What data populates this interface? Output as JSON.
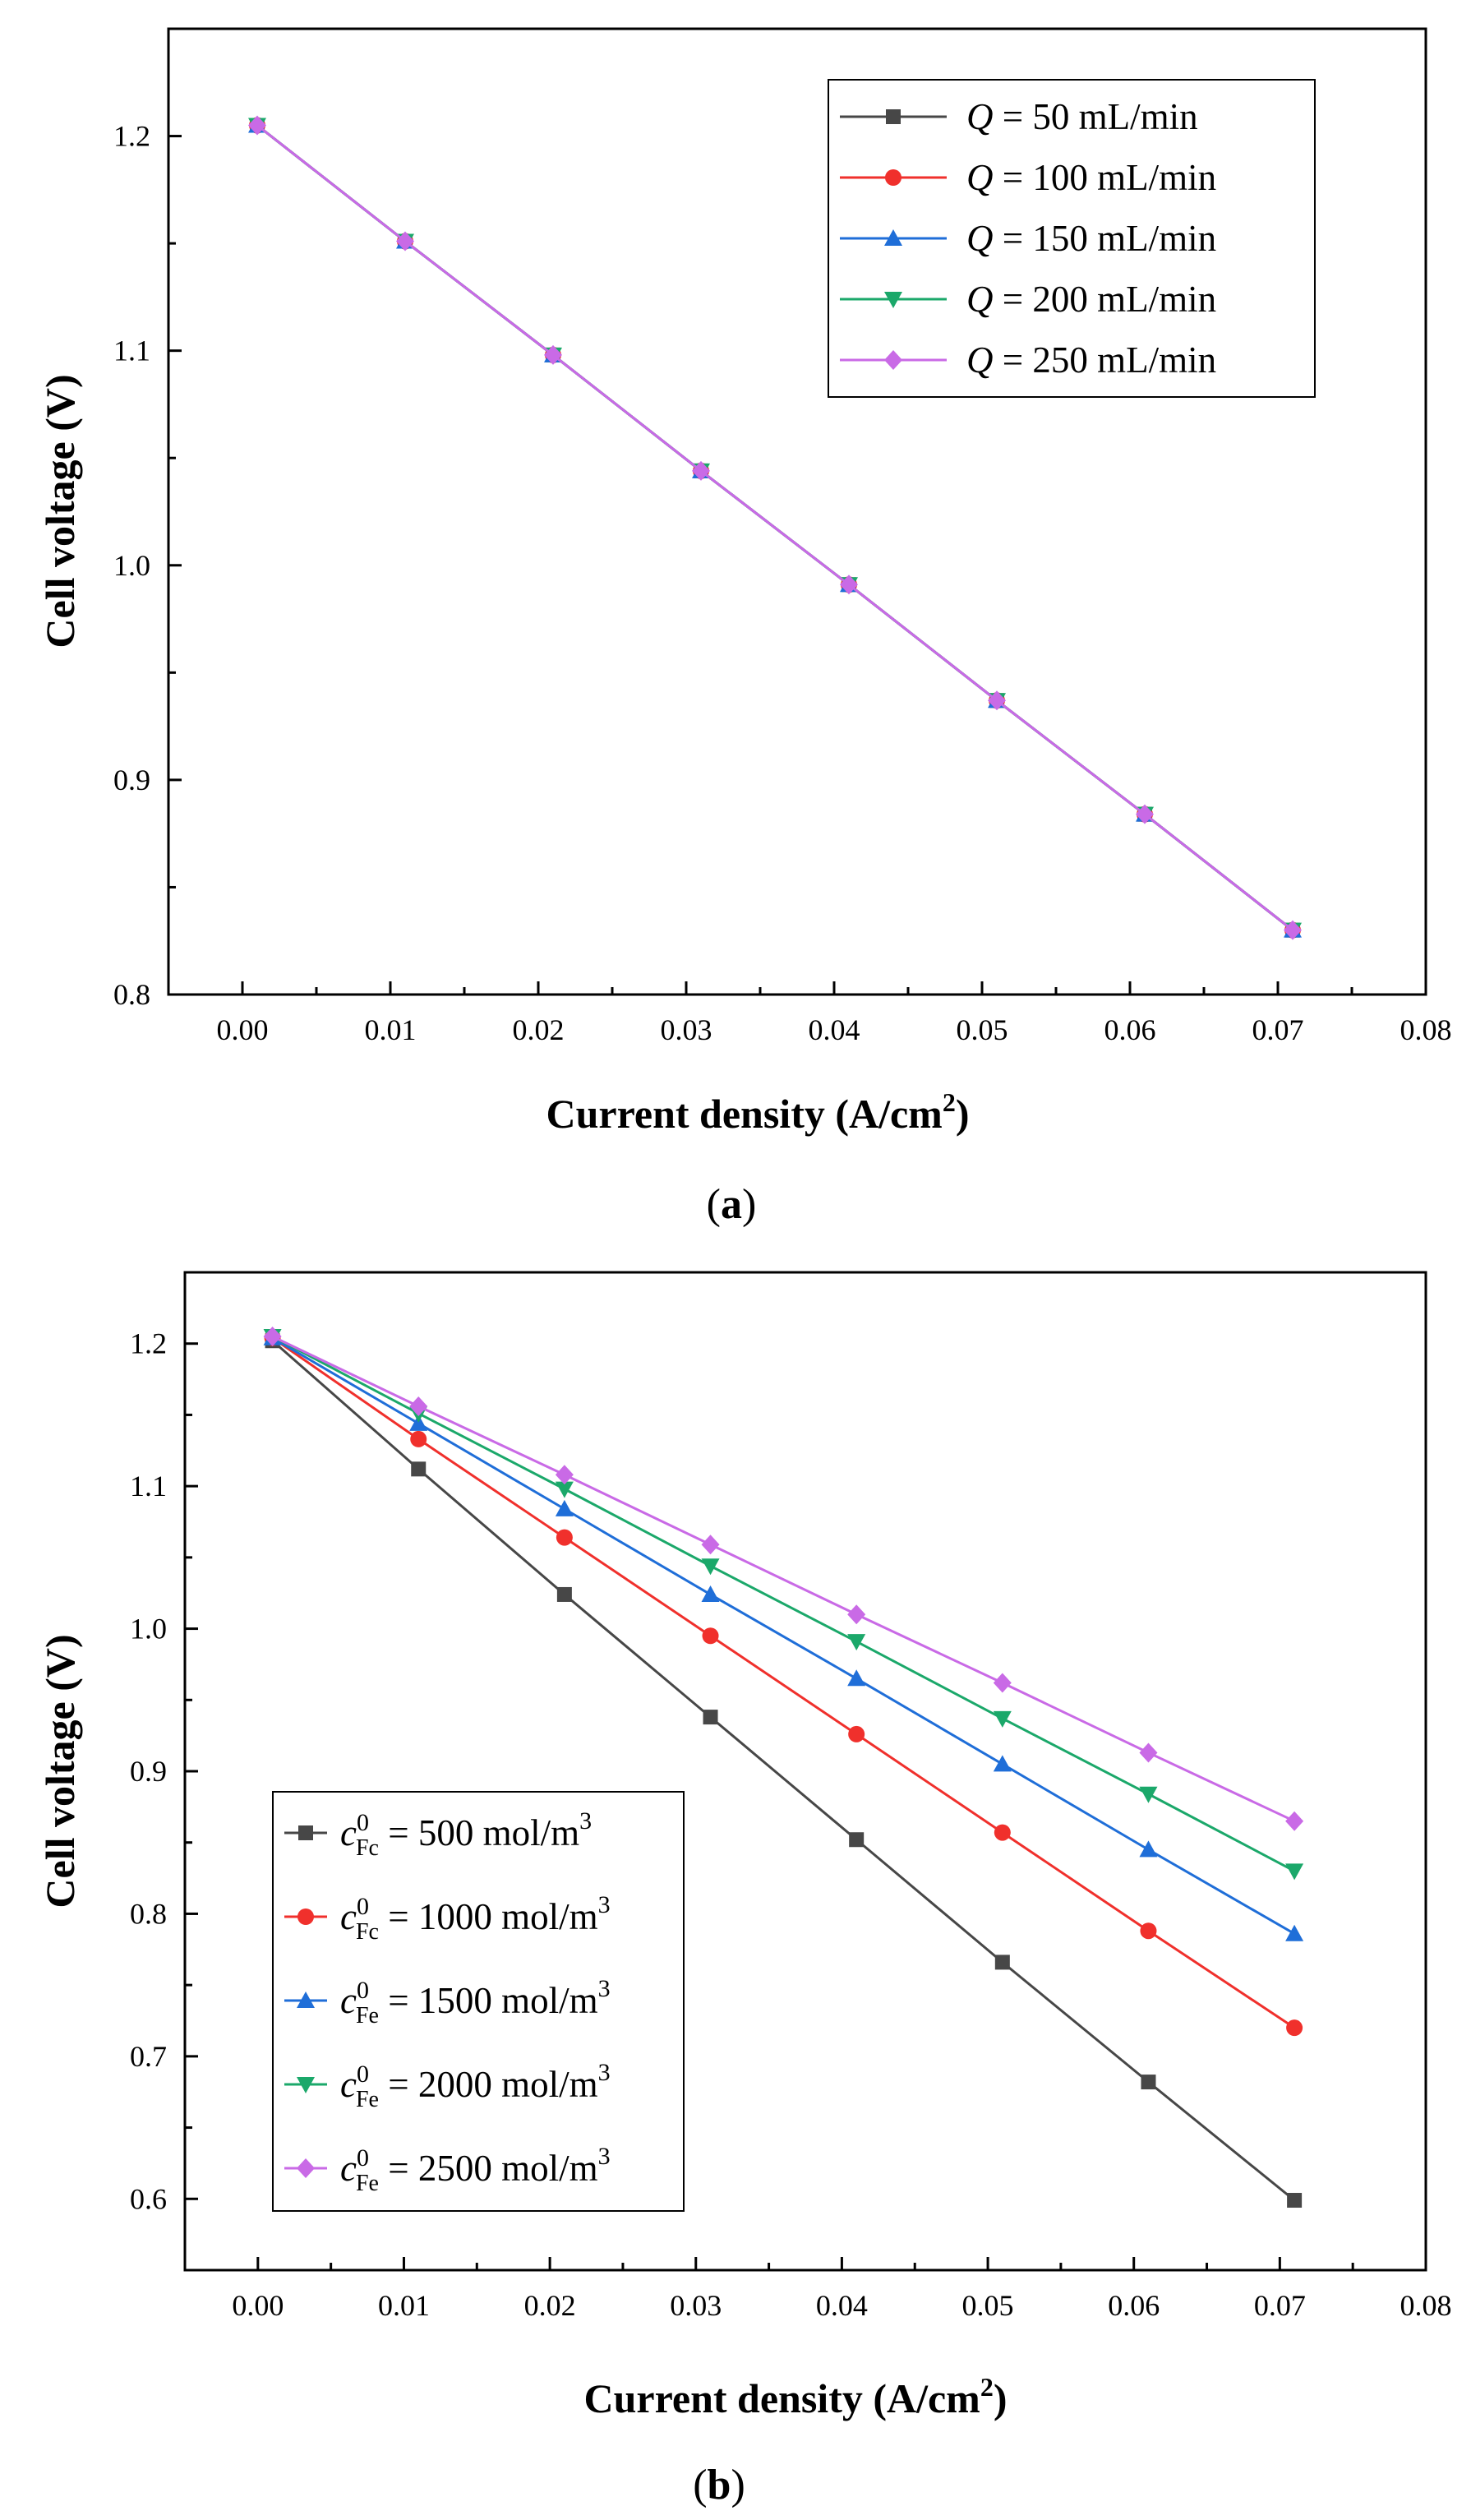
{
  "figure": {
    "panels": [
      {
        "label": "a",
        "chart_data": {
          "type": "line",
          "xlabel_main": "Current density  (A/cm",
          "xlabel_sup": "2",
          "xlabel_end": ")",
          "ylabel": "Cell voltage  (V)",
          "xlim": [
            -0.005,
            0.08
          ],
          "ylim": [
            0.8,
            1.25
          ],
          "xticks": [
            0.0,
            0.01,
            0.02,
            0.03,
            0.04,
            0.05,
            0.06,
            0.07,
            0.08
          ],
          "xtick_labels": [
            "0.00",
            "0.01",
            "0.02",
            "0.03",
            "0.04",
            "0.05",
            "0.06",
            "0.07",
            "0.08"
          ],
          "yticks": [
            0.8,
            0.9,
            1.0,
            1.1,
            1.2
          ],
          "ytick_labels": [
            "0.8",
            "0.9",
            "1.0",
            "1.1",
            "1.2"
          ],
          "x": [
            0.001,
            0.011,
            0.021,
            0.031,
            0.041,
            0.051,
            0.061,
            0.071
          ],
          "legend_position": "top-right",
          "series": [
            {
              "name": "50 mL/min",
              "legend_var": "Q",
              "legend_eq": " = ",
              "legend_value": "50 mL/min",
              "color": "#474747",
              "marker": "square",
              "values": [
                1.205,
                1.151,
                1.098,
                1.044,
                0.991,
                0.937,
                0.884,
                0.83
              ]
            },
            {
              "name": "100 mL/min",
              "legend_var": "Q",
              "legend_eq": " = ",
              "legend_value": "100 mL/min",
              "color": "#f0302c",
              "marker": "circle",
              "values": [
                1.205,
                1.151,
                1.098,
                1.044,
                0.991,
                0.937,
                0.884,
                0.83
              ]
            },
            {
              "name": "150 mL/min",
              "legend_var": "Q",
              "legend_eq": " = ",
              "legend_value": "150 mL/min",
              "color": "#1f6ed8",
              "marker": "triangle-up",
              "values": [
                1.205,
                1.151,
                1.098,
                1.044,
                0.991,
                0.937,
                0.884,
                0.83
              ]
            },
            {
              "name": "200 mL/min",
              "legend_var": "Q",
              "legend_eq": " = ",
              "legend_value": "200 mL/min",
              "color": "#1ba86a",
              "marker": "triangle-down",
              "values": [
                1.205,
                1.151,
                1.098,
                1.044,
                0.991,
                0.937,
                0.884,
                0.83
              ]
            },
            {
              "name": "250 mL/min",
              "legend_var": "Q",
              "legend_eq": " = ",
              "legend_value": "250 mL/min",
              "color": "#c96ae6",
              "marker": "diamond",
              "values": [
                1.205,
                1.151,
                1.098,
                1.044,
                0.991,
                0.937,
                0.884,
                0.83
              ]
            }
          ]
        }
      },
      {
        "label": "b",
        "chart_data": {
          "type": "line",
          "xlabel_main": "Current density  (A/cm",
          "xlabel_sup": "2",
          "xlabel_end": ")",
          "ylabel": "Cell voltage  (V)",
          "xlim": [
            -0.005,
            0.08
          ],
          "ylim": [
            0.55,
            1.25
          ],
          "xticks": [
            0.0,
            0.01,
            0.02,
            0.03,
            0.04,
            0.05,
            0.06,
            0.07,
            0.08
          ],
          "xtick_labels": [
            "0.00",
            "0.01",
            "0.02",
            "0.03",
            "0.04",
            "0.05",
            "0.06",
            "0.07",
            "0.08"
          ],
          "yticks": [
            0.6,
            0.7,
            0.8,
            0.9,
            1.0,
            1.1,
            1.2
          ],
          "ytick_labels": [
            "0.6",
            "0.7",
            "0.8",
            "0.9",
            "1.0",
            "1.1",
            "1.2"
          ],
          "x": [
            0.001,
            0.011,
            0.021,
            0.031,
            0.041,
            0.051,
            0.061,
            0.071
          ],
          "legend_position": "bottom-left",
          "series": [
            {
              "name": "500 mol/m3",
              "legend_var": "c",
              "legend_sup": "0",
              "legend_sub": "Fc",
              "legend_eq": " = ",
              "legend_value": "500 mol/m",
              "legend_unit_sup": "3",
              "color": "#474747",
              "marker": "square",
              "values": [
                1.202,
                1.112,
                1.024,
                0.938,
                0.852,
                0.766,
                0.682,
                0.599
              ]
            },
            {
              "name": "1000 mol/m3",
              "legend_var": "c",
              "legend_sup": "0",
              "legend_sub": "Fc",
              "legend_eq": " = ",
              "legend_value": "1000 mol/m",
              "legend_unit_sup": "3",
              "color": "#f0302c",
              "marker": "circle",
              "values": [
                1.204,
                1.133,
                1.064,
                0.995,
                0.926,
                0.857,
                0.788,
                0.72
              ]
            },
            {
              "name": "1500 mol/m3",
              "legend_var": "c",
              "legend_sup": "0",
              "legend_sub": "Fe",
              "legend_eq": " = ",
              "legend_value": "1500 mol/m",
              "legend_unit_sup": "3",
              "color": "#1f6ed8",
              "marker": "triangle-up",
              "values": [
                1.204,
                1.144,
                1.084,
                1.024,
                0.965,
                0.905,
                0.845,
                0.786
              ]
            },
            {
              "name": "2000 mol/m3",
              "legend_var": "c",
              "legend_sup": "0",
              "legend_sub": "Fe",
              "legend_eq": " = ",
              "legend_value": "2000 mol/m",
              "legend_unit_sup": "3",
              "color": "#1ba86a",
              "marker": "triangle-down",
              "values": [
                1.205,
                1.151,
                1.098,
                1.044,
                0.991,
                0.937,
                0.884,
                0.83
              ]
            },
            {
              "name": "2500 mol/m3",
              "legend_var": "c",
              "legend_sup": "0",
              "legend_sub": "Fe",
              "legend_eq": " = ",
              "legend_value": "2500 mol/m",
              "legend_unit_sup": "3",
              "color": "#c96ae6",
              "marker": "diamond",
              "values": [
                1.205,
                1.156,
                1.108,
                1.059,
                1.01,
                0.962,
                0.913,
                0.865
              ]
            }
          ]
        }
      }
    ]
  }
}
